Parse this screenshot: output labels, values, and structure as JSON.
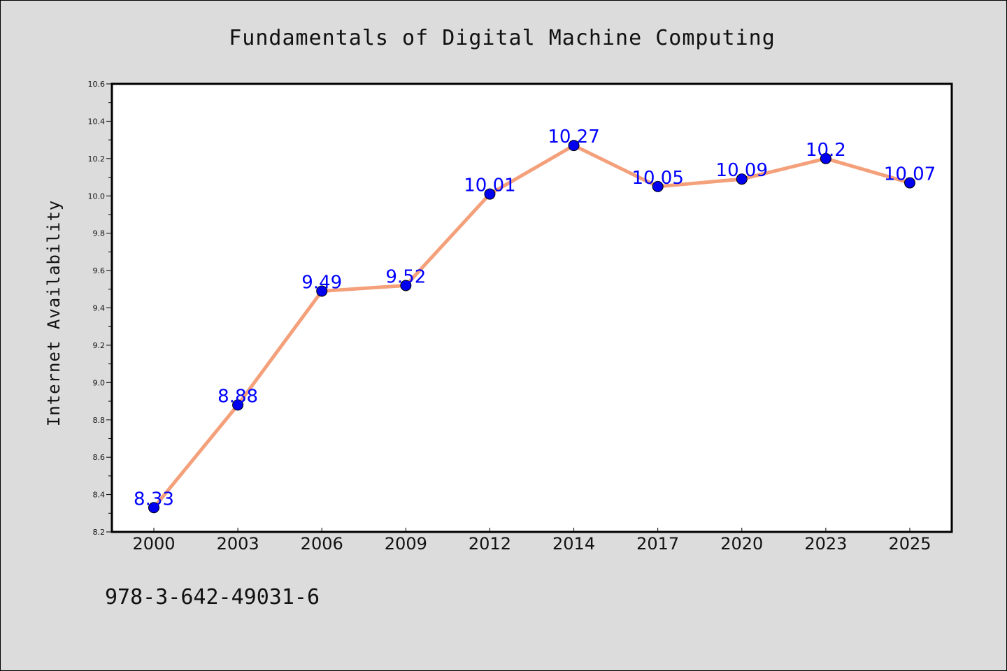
{
  "chart_data": {
    "type": "line",
    "title": "Fundamentals of Digital Machine Computing",
    "xlabel": "",
    "ylabel": "Internet Availability",
    "categories": [
      "2000",
      "2003",
      "2006",
      "2009",
      "2012",
      "2014",
      "2017",
      "2020",
      "2023",
      "2025"
    ],
    "series": [
      {
        "values": [
          8.33,
          8.88,
          9.49,
          9.52,
          10.01,
          10.27,
          10.05,
          10.09,
          10.2,
          10.07
        ],
        "data_labels": [
          "8.33",
          "8.88",
          "9.49",
          "9.52",
          "10.01",
          "10.27",
          "10.05",
          "10.09",
          "10.2",
          "10.07"
        ]
      }
    ],
    "ylim": [
      8.2,
      10.6
    ],
    "yticks": [
      "8.2",
      "8.4",
      "8.6",
      "8.8",
      "9.0",
      "9.2",
      "9.4",
      "9.6",
      "9.8",
      "10.0",
      "10.2",
      "10.4",
      "10.6"
    ],
    "grid": false,
    "legend": "none",
    "colors": {
      "line": "#f4a07a",
      "marker": "#0000ee",
      "label": "#0000ff",
      "plot_bg": "#ffffff",
      "figure_bg": "#dcdcdc"
    }
  },
  "footer": {
    "isbn": "978-3-642-49031-6"
  }
}
